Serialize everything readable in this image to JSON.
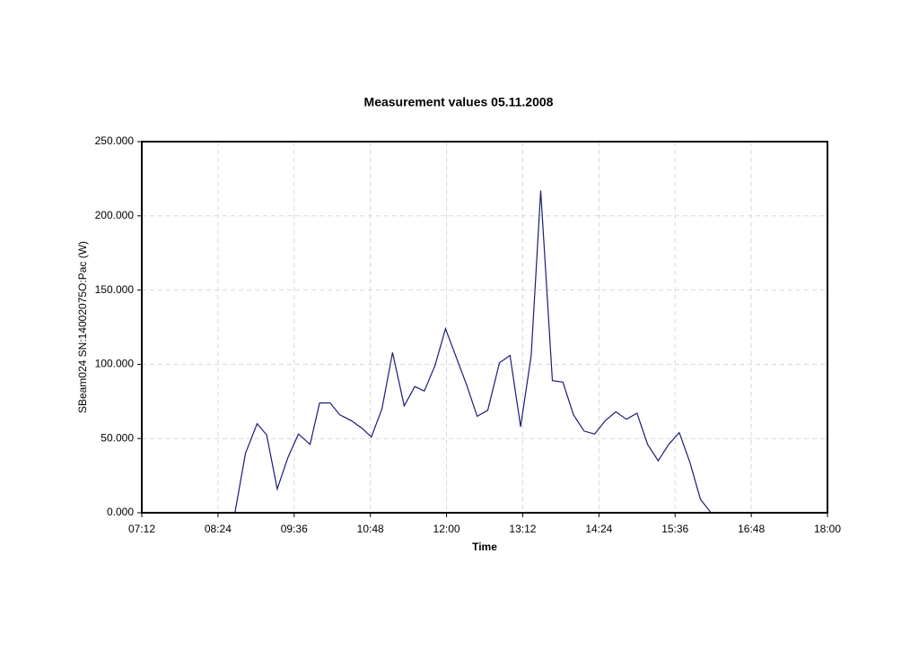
{
  "chart_data": {
    "type": "line",
    "title": "Measurement values 05.11.2008",
    "x_label": "Time",
    "y_label": "SBeam024 SN:14002075O:Pac (W)",
    "x": [
      "08:40",
      "08:50",
      "09:01",
      "09:10",
      "09:20",
      "09:30",
      "09:40",
      "09:51",
      "10:00",
      "10:10",
      "10:19",
      "10:30",
      "10:40",
      "10:49",
      "10:59",
      "11:09",
      "11:20",
      "11:30",
      "11:39",
      "11:49",
      "11:59",
      "12:09",
      "12:19",
      "12:29",
      "12:39",
      "12:50",
      "13:00",
      "13:10",
      "13:20",
      "13:29",
      "13:40",
      "13:50",
      "14:00",
      "14:10",
      "14:20",
      "14:30",
      "14:40",
      "14:50",
      "15:00",
      "15:10",
      "15:20",
      "15:30",
      "15:40",
      "15:50",
      "16:00",
      "16:10"
    ],
    "series": [
      {
        "name": "Pac",
        "color": "#1c1c78",
        "values": [
          0,
          40,
          60,
          52.5,
          16,
          37,
          53,
          46,
          74,
          74,
          66,
          62,
          57,
          51,
          70,
          108,
          72,
          85,
          82,
          99,
          124,
          105,
          86,
          65,
          69,
          101,
          106,
          58,
          106,
          217,
          89,
          88,
          66,
          55,
          53,
          62,
          68,
          63,
          67,
          46,
          35,
          46,
          54,
          34,
          9,
          0
        ]
      }
    ],
    "xlim": [
      "07:12",
      "18:00"
    ],
    "xticks": [
      "07:12",
      "08:24",
      "09:36",
      "10:48",
      "12:00",
      "13:12",
      "14:24",
      "15:36",
      "16:48",
      "18:00"
    ],
    "ylim": [
      0,
      250
    ],
    "yticks": [
      {
        "value": 0,
        "label": "0.000"
      },
      {
        "value": 50,
        "label": "50.000"
      },
      {
        "value": 100,
        "label": "100.000"
      },
      {
        "value": 150,
        "label": "150.000"
      },
      {
        "value": 200,
        "label": "200.000"
      },
      {
        "value": 250,
        "label": "250.000"
      }
    ],
    "grid": true
  }
}
